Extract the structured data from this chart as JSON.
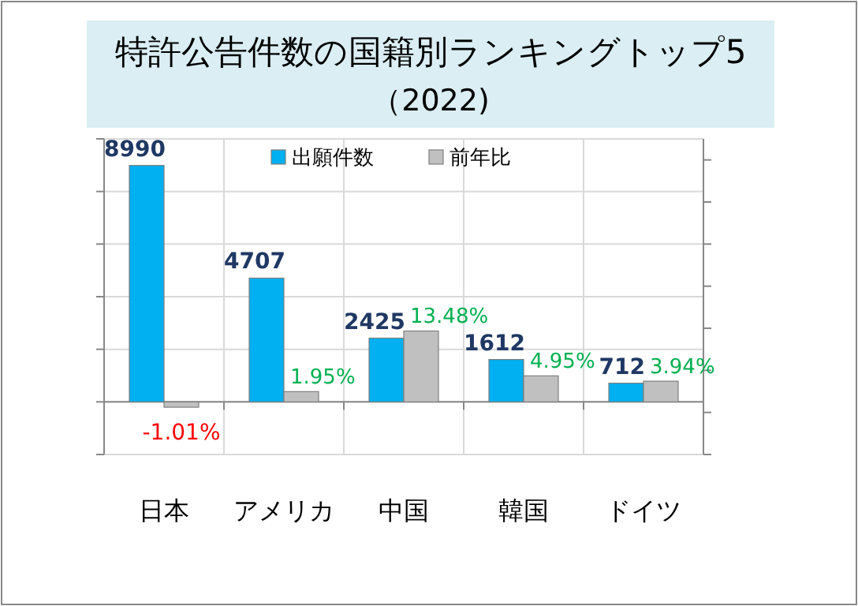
{
  "chart_data": {
    "type": "bar",
    "title": "特許公告件数の国籍別ランキングトップ5",
    "subtitle": "（2022)",
    "categories": [
      "日本",
      "アメリカ",
      "中国",
      "韓国",
      "ドイツ"
    ],
    "series": [
      {
        "name": "出願件数",
        "color": "#00b0f0",
        "values": [
          8990,
          4707,
          2425,
          1612,
          712
        ],
        "value_labels": [
          "8990",
          "4707",
          "2425",
          "1612",
          "712"
        ]
      },
      {
        "name": "前年比",
        "color": "#c0c0c0",
        "axis": "y2",
        "values": [
          -1.01,
          1.95,
          13.48,
          4.95,
          3.94
        ],
        "value_labels": [
          "-1.01%",
          "1.95%",
          "13.48%",
          "4.95%",
          "3.94%"
        ]
      }
    ],
    "ylim": [
      -2000,
      10000
    ],
    "yticks": [
      {
        "value": -2000,
        "label": null
      },
      {
        "value": 0,
        "label": null
      },
      {
        "value": 2000,
        "label": null
      },
      {
        "value": 4000,
        "label": null
      },
      {
        "value": 6000,
        "label": null
      },
      {
        "value": 8000,
        "label": null
      },
      {
        "value": 10000,
        "label": null
      }
    ],
    "y2lim": [
      -10,
      50
    ],
    "y2ticks": [
      {
        "value": -10,
        "label": null
      },
      {
        "value": -2,
        "label": null
      },
      {
        "value": 6,
        "label": null
      },
      {
        "value": 14,
        "label": null
      },
      {
        "value": 22,
        "label": null
      },
      {
        "value": 30,
        "label": null
      },
      {
        "value": 38,
        "label": null
      },
      {
        "value": 46,
        "label": null
      }
    ],
    "tick_labels": "x",
    "grid": true,
    "legend": "top"
  }
}
